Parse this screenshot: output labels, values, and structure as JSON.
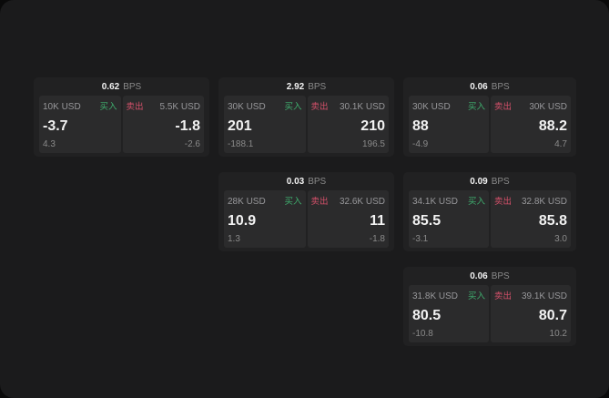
{
  "colors": {
    "page_bg": "#0a0a0a",
    "window_bg": "#1b1b1c",
    "card_bg": "#212122",
    "panel_bg": "#2b2b2c",
    "text_primary": "#f2f2f2",
    "text_label": "#97979a",
    "text_muted": "#8a8a8a",
    "buy_green": "#3fae6e",
    "sell_red": "#d4506a"
  },
  "labels": {
    "bps_unit": "BPS",
    "buy": "买入",
    "sell": "卖出"
  },
  "cards": [
    {
      "bps": "0.62",
      "row": 1,
      "col": 1,
      "buy": {
        "size": "10K USD",
        "value": "-3.7",
        "sub": "4.3"
      },
      "sell": {
        "size": "5.5K USD",
        "value": "-1.8",
        "sub": "-2.6"
      }
    },
    {
      "bps": "2.92",
      "row": 1,
      "col": 2,
      "buy": {
        "size": "30K USD",
        "value": "201",
        "sub": "-188.1"
      },
      "sell": {
        "size": "30.1K USD",
        "value": "210",
        "sub": "196.5"
      }
    },
    {
      "bps": "0.06",
      "row": 1,
      "col": 3,
      "buy": {
        "size": "30K USD",
        "value": "88",
        "sub": "-4.9"
      },
      "sell": {
        "size": "30K USD",
        "value": "88.2",
        "sub": "4.7"
      }
    },
    {
      "bps": "0.03",
      "row": 2,
      "col": 2,
      "buy": {
        "size": "28K USD",
        "value": "10.9",
        "sub": "1.3"
      },
      "sell": {
        "size": "32.6K USD",
        "value": "11",
        "sub": "-1.8"
      }
    },
    {
      "bps": "0.09",
      "row": 2,
      "col": 3,
      "buy": {
        "size": "34.1K USD",
        "value": "85.5",
        "sub": "-3.1"
      },
      "sell": {
        "size": "32.8K USD",
        "value": "85.8",
        "sub": "3.0"
      }
    },
    {
      "bps": "0.06",
      "row": 3,
      "col": 3,
      "buy": {
        "size": "31.8K USD",
        "value": "80.5",
        "sub": "-10.8"
      },
      "sell": {
        "size": "39.1K USD",
        "value": "80.7",
        "sub": "10.2"
      }
    }
  ]
}
